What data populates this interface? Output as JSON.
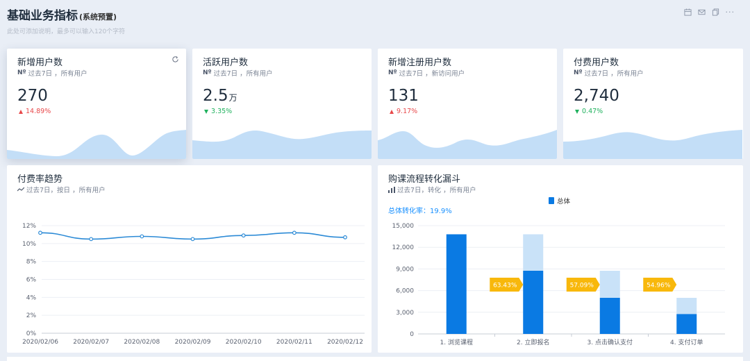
{
  "header": {
    "title": "基础业务指标",
    "subtitle": "(系统预置)",
    "description": "此处可添加说明，最多可以输入120个字符",
    "toolbar_icons": [
      "calendar-icon",
      "mail-icon",
      "copy-icon",
      "more-icon"
    ],
    "more_label": "···"
  },
  "kpis": [
    {
      "title": "新增用户数",
      "meta_icon": "Nº",
      "meta": "过去7日 ，所有用户",
      "value": "270",
      "unit": "",
      "change": "14.89%",
      "direction": "up",
      "wave_color": "#c3def7"
    },
    {
      "title": "活跃用户数",
      "meta_icon": "Nº",
      "meta": "过去7日 ，所有用户",
      "value": "2.5",
      "unit": "万",
      "change": "3.35%",
      "direction": "down",
      "wave_color": "#c3def7"
    },
    {
      "title": "新增注册用户数",
      "meta_icon": "Nº",
      "meta": "过去7日 ，新访问用户",
      "value": "131",
      "unit": "",
      "change": "9.17%",
      "direction": "up",
      "wave_color": "#c3def7"
    },
    {
      "title": "付费用户数",
      "meta_icon": "Nº",
      "meta": "过去7日 ，所有用户",
      "value": "2,740",
      "unit": "",
      "change": "0.47%",
      "direction": "down",
      "wave_color": "#c3def7"
    }
  ],
  "trend": {
    "title": "付费率趋势",
    "meta": "过去7日，按日 ，所有用户"
  },
  "funnel": {
    "title": "购课流程转化漏斗",
    "meta": "过去7日，转化 ，所有用户",
    "conversion_label": "总体转化率：19.9%",
    "legend": "总体"
  },
  "colors": {
    "primary": "#0a7ae3",
    "light": "#c9e2f8",
    "badge": "#f8b80c",
    "line": "#2b8ad6",
    "up": "#e8484a",
    "down": "#1fb15d"
  },
  "chart_data": [
    {
      "type": "line",
      "title": "",
      "x": [
        "2020/02/06",
        "2020/02/07",
        "2020/02/08",
        "2020/02/09",
        "2020/02/10",
        "2020/02/11",
        "2020/02/12"
      ],
      "series": [
        {
          "values": [
            11.2,
            10.5,
            10.8,
            10.5,
            10.9,
            11.2,
            10.7
          ]
        }
      ],
      "ylim": [
        0,
        12
      ],
      "yticks": [
        "0%",
        "2%",
        "4%",
        "6%",
        "8%",
        "10%",
        "12%"
      ],
      "grid": true
    },
    {
      "type": "bar",
      "title": "",
      "categories": [
        "1. 浏览课程",
        "2. 立即报名",
        "3. 点击确认支付",
        "4. 支付订单"
      ],
      "series": [
        {
          "name": "总体",
          "values": [
            13800,
            8750,
            5000,
            2750
          ]
        }
      ],
      "previous_step": [
        13800,
        13800,
        8750,
        5000
      ],
      "step_rates": [
        "63.43%",
        "57.09%",
        "54.96%"
      ],
      "ylim": [
        0,
        15000
      ],
      "yticks": [
        "0",
        "3,000",
        "6,000",
        "9,000",
        "12,000",
        "15,000"
      ],
      "legend": "top"
    }
  ]
}
